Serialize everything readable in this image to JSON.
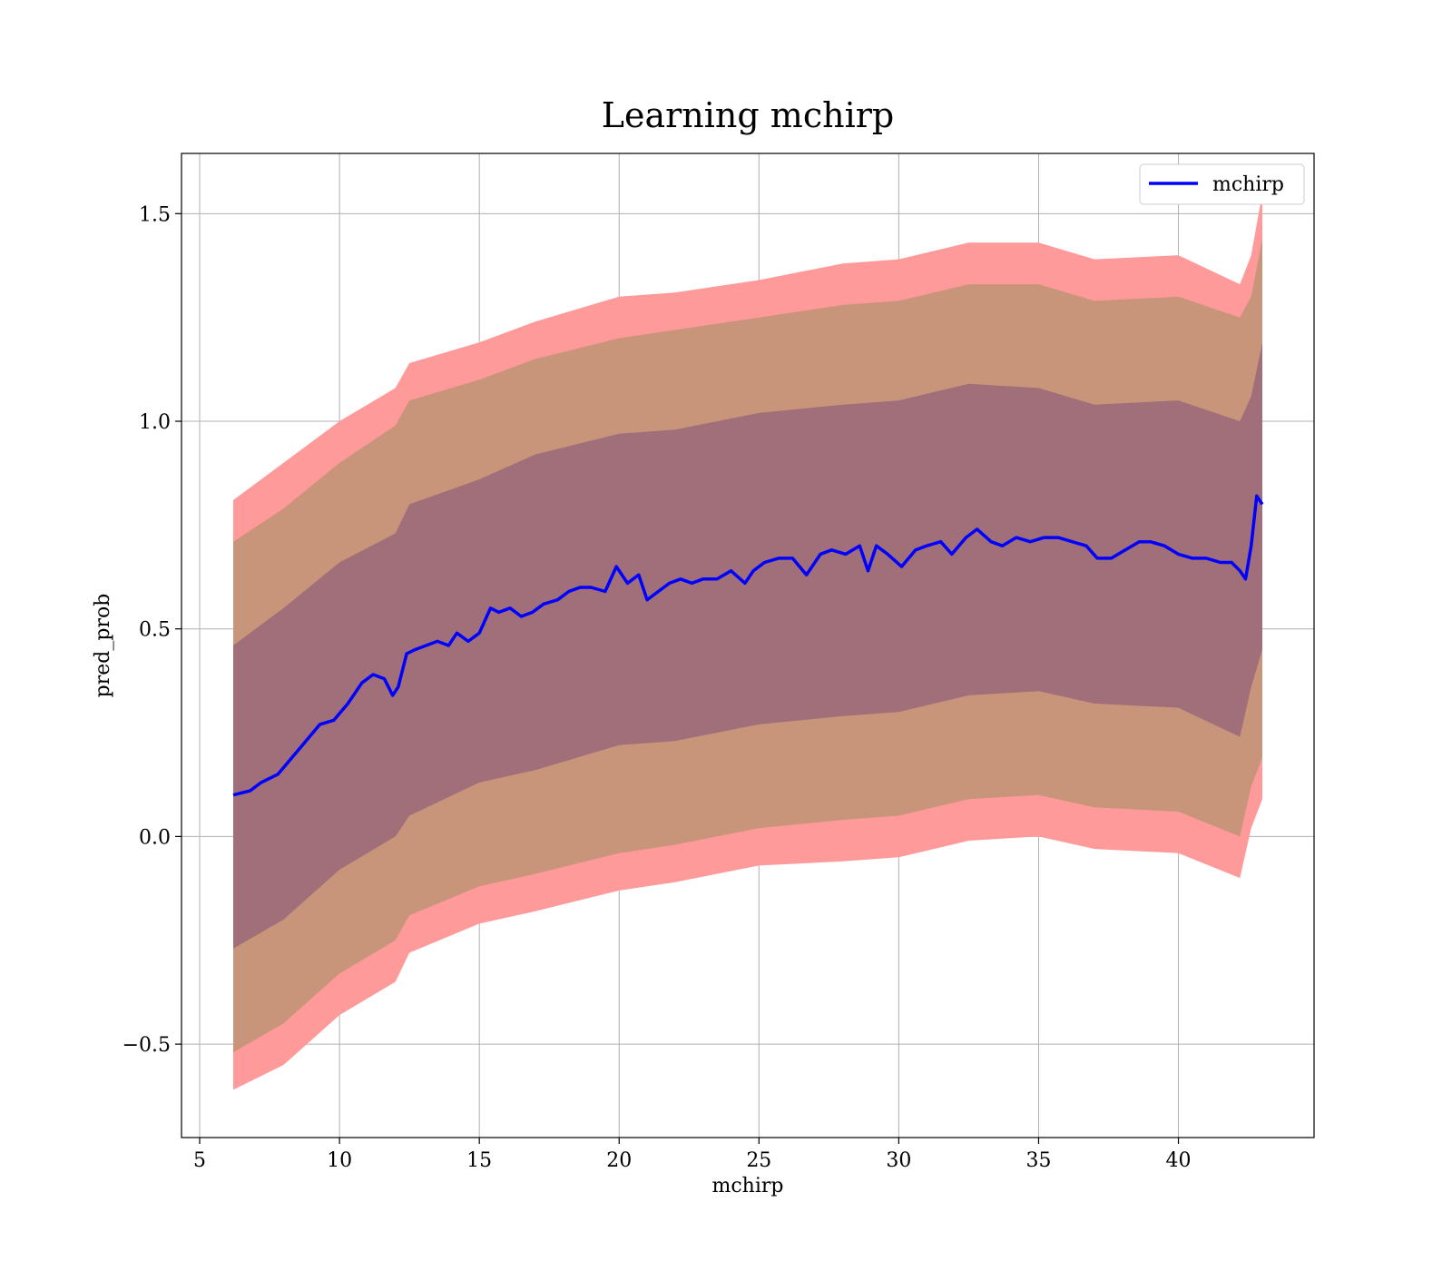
{
  "chart_data": {
    "type": "line",
    "title": "Learning mchirp",
    "xlabel": "mchirp",
    "ylabel": "pred_prob",
    "xlim": [
      4.35,
      44.85
    ],
    "ylim": [
      -0.725,
      1.645
    ],
    "x_ticks": [
      5,
      10,
      15,
      20,
      25,
      30,
      35,
      40
    ],
    "x_tick_labels": [
      "5",
      "10",
      "15",
      "20",
      "25",
      "30",
      "35",
      "40"
    ],
    "y_ticks": [
      -0.5,
      0.0,
      0.5,
      1.0,
      1.5
    ],
    "y_tick_labels": [
      "−0.5",
      "0.0",
      "0.5",
      "1.0",
      "1.5"
    ],
    "grid": true,
    "legend": {
      "position": "top-right",
      "entries": [
        "mchirp"
      ]
    },
    "colors": {
      "line": "#0000ff",
      "band_outer": "#ff9a9a",
      "band_middle": "#c8957a",
      "band_inner": "#a06f79"
    },
    "series": [
      {
        "name": "mchirp",
        "kind": "line",
        "x": [
          6.2,
          6.8,
          7.2,
          7.8,
          8.3,
          8.8,
          9.3,
          9.8,
          10.3,
          10.8,
          11.2,
          11.6,
          11.9,
          12.1,
          12.4,
          12.7,
          13.1,
          13.5,
          13.9,
          14.2,
          14.6,
          15.0,
          15.4,
          15.7,
          16.1,
          16.5,
          16.9,
          17.3,
          17.8,
          18.2,
          18.6,
          19.0,
          19.5,
          19.9,
          20.3,
          20.7,
          21.0,
          21.4,
          21.8,
          22.2,
          22.6,
          23.0,
          23.5,
          24.0,
          24.5,
          24.8,
          25.2,
          25.7,
          26.2,
          26.7,
          27.2,
          27.6,
          28.1,
          28.6,
          28.9,
          29.2,
          29.6,
          30.1,
          30.6,
          31.0,
          31.5,
          31.9,
          32.4,
          32.8,
          33.3,
          33.7,
          34.2,
          34.7,
          35.2,
          35.7,
          36.2,
          36.7,
          37.1,
          37.6,
          38.1,
          38.6,
          39.0,
          39.5,
          40.0,
          40.5,
          41.0,
          41.5,
          41.9,
          42.2,
          42.4,
          42.6,
          42.8,
          43.0
        ],
        "y": [
          0.1,
          0.11,
          0.13,
          0.15,
          0.19,
          0.23,
          0.27,
          0.28,
          0.32,
          0.37,
          0.39,
          0.38,
          0.34,
          0.36,
          0.44,
          0.45,
          0.46,
          0.47,
          0.46,
          0.49,
          0.47,
          0.49,
          0.55,
          0.54,
          0.55,
          0.53,
          0.54,
          0.56,
          0.57,
          0.59,
          0.6,
          0.6,
          0.59,
          0.65,
          0.61,
          0.63,
          0.57,
          0.59,
          0.61,
          0.62,
          0.61,
          0.62,
          0.62,
          0.64,
          0.61,
          0.64,
          0.66,
          0.67,
          0.67,
          0.63,
          0.68,
          0.69,
          0.68,
          0.7,
          0.64,
          0.7,
          0.68,
          0.65,
          0.69,
          0.7,
          0.71,
          0.68,
          0.72,
          0.74,
          0.71,
          0.7,
          0.72,
          0.71,
          0.72,
          0.72,
          0.71,
          0.7,
          0.67,
          0.67,
          0.69,
          0.71,
          0.71,
          0.7,
          0.68,
          0.67,
          0.67,
          0.66,
          0.66,
          0.64,
          0.62,
          0.7,
          0.82,
          0.8
        ]
      },
      {
        "name": "",
        "kind": "band",
        "color_key": "band_outer",
        "x": [
          6.2,
          8.0,
          10.0,
          12.0,
          12.5,
          15.0,
          17.0,
          20.0,
          22.0,
          25.0,
          28.0,
          30.0,
          32.5,
          35.0,
          37.0,
          40.0,
          42.2,
          42.6,
          43.0
        ],
        "y_upper": [
          0.81,
          0.9,
          1.0,
          1.08,
          1.14,
          1.19,
          1.24,
          1.3,
          1.31,
          1.34,
          1.38,
          1.39,
          1.43,
          1.43,
          1.39,
          1.4,
          1.33,
          1.4,
          1.55
        ],
        "y_lower": [
          -0.61,
          -0.55,
          -0.43,
          -0.35,
          -0.28,
          -0.21,
          -0.18,
          -0.13,
          -0.11,
          -0.07,
          -0.06,
          -0.05,
          -0.01,
          0.0,
          -0.03,
          -0.04,
          -0.1,
          0.02,
          0.09
        ]
      },
      {
        "name": "",
        "kind": "band",
        "color_key": "band_middle",
        "x": [
          6.2,
          8.0,
          10.0,
          12.0,
          12.5,
          15.0,
          17.0,
          20.0,
          22.0,
          25.0,
          28.0,
          30.0,
          32.5,
          35.0,
          37.0,
          40.0,
          42.2,
          42.6,
          43.0
        ],
        "y_upper": [
          0.71,
          0.79,
          0.9,
          0.99,
          1.05,
          1.1,
          1.15,
          1.2,
          1.22,
          1.25,
          1.28,
          1.29,
          1.33,
          1.33,
          1.29,
          1.3,
          1.25,
          1.3,
          1.44
        ],
        "y_lower": [
          -0.52,
          -0.45,
          -0.33,
          -0.25,
          -0.19,
          -0.12,
          -0.09,
          -0.04,
          -0.02,
          0.02,
          0.04,
          0.05,
          0.09,
          0.1,
          0.07,
          0.06,
          0.0,
          0.12,
          0.19
        ]
      },
      {
        "name": "",
        "kind": "band",
        "color_key": "band_inner",
        "x": [
          6.2,
          8.0,
          10.0,
          12.0,
          12.5,
          15.0,
          17.0,
          20.0,
          22.0,
          25.0,
          28.0,
          30.0,
          32.5,
          35.0,
          37.0,
          40.0,
          42.2,
          42.6,
          43.0
        ],
        "y_upper": [
          0.46,
          0.55,
          0.66,
          0.73,
          0.8,
          0.86,
          0.92,
          0.97,
          0.98,
          1.02,
          1.04,
          1.05,
          1.09,
          1.08,
          1.04,
          1.05,
          1.0,
          1.06,
          1.19
        ],
        "y_lower": [
          -0.27,
          -0.2,
          -0.08,
          0.0,
          0.05,
          0.13,
          0.16,
          0.22,
          0.23,
          0.27,
          0.29,
          0.3,
          0.34,
          0.35,
          0.32,
          0.31,
          0.24,
          0.36,
          0.45
        ]
      }
    ]
  }
}
